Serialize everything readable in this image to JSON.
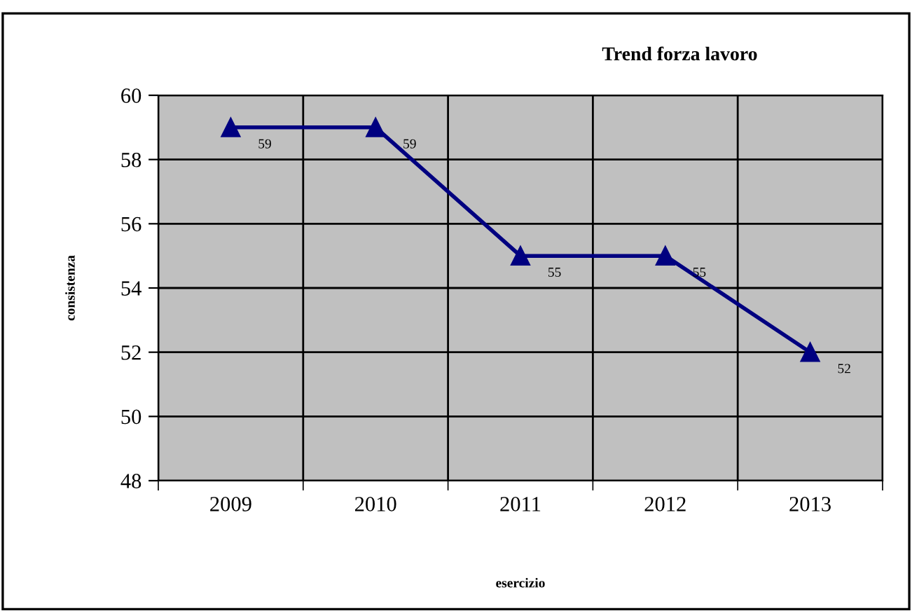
{
  "chart_data": {
    "type": "line",
    "title": "Trend forza lavoro",
    "xlabel": "esercizio",
    "ylabel": "consistenza",
    "categories": [
      "2009",
      "2010",
      "2011",
      "2012",
      "2013"
    ],
    "series": [
      {
        "color": "#000080",
        "values": [
          59,
          59,
          55,
          55,
          52
        ]
      }
    ],
    "ylim": [
      48,
      60
    ],
    "yticks": [
      48,
      50,
      52,
      54,
      56,
      58,
      60
    ],
    "grid": true,
    "marker": "triangle",
    "line_style": "solid",
    "data_labels": true,
    "legend": false
  }
}
